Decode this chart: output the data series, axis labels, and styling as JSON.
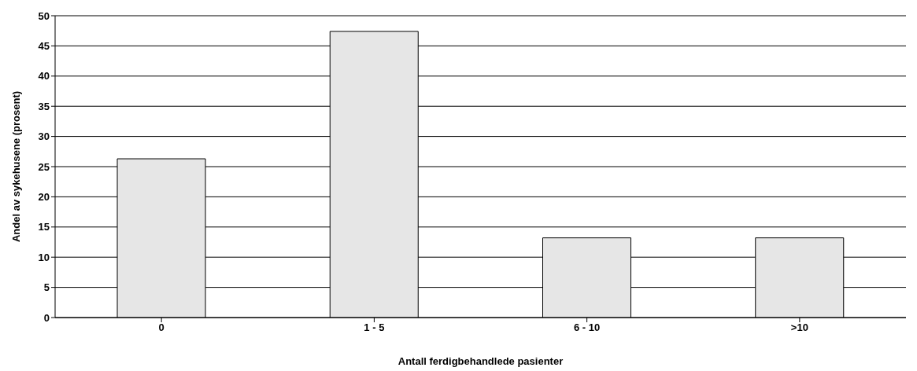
{
  "chart_data": {
    "type": "bar",
    "xlabel": "Antall ferdigbehandlede pasienter",
    "ylabel": "Andel av sykehusene (prosent)",
    "categories": [
      "0",
      "1 - 5",
      "6 - 10",
      ">10"
    ],
    "values": [
      26.3,
      47.4,
      13.2,
      13.2
    ],
    "color": "#e6e6e6",
    "ylim": [
      0,
      50
    ],
    "yticks": [
      0,
      5,
      10,
      15,
      20,
      25,
      30,
      35,
      40,
      45,
      50
    ],
    "grid": "y"
  }
}
